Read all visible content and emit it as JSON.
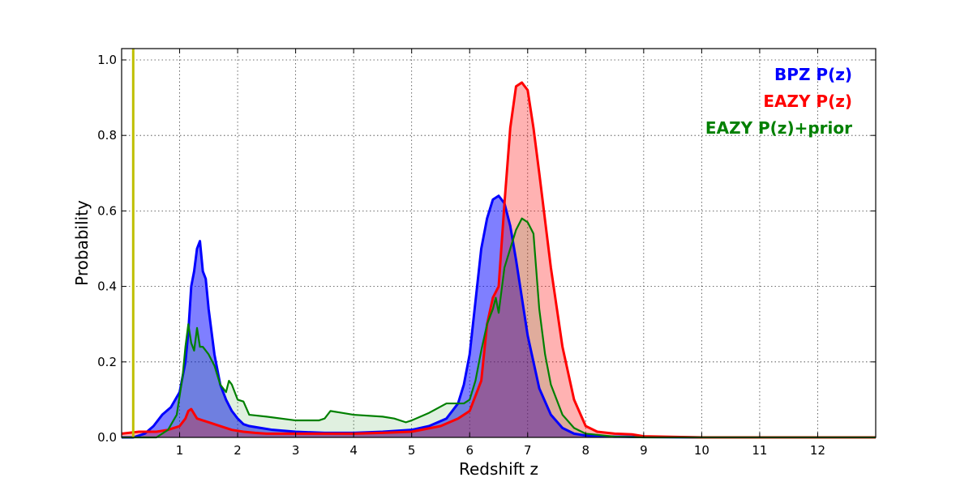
{
  "chart_data": {
    "type": "area",
    "xlabel": "Redshift z",
    "ylabel": "Probability",
    "xlim": [
      0,
      13
    ],
    "ylim": [
      0,
      1.03
    ],
    "x_ticks": [
      1,
      2,
      3,
      4,
      5,
      6,
      7,
      8,
      9,
      10,
      11,
      12
    ],
    "y_ticks": [
      0.0,
      0.2,
      0.4,
      0.6,
      0.8,
      1.0
    ],
    "y_tick_labels": [
      "0.0",
      "0.2",
      "0.4",
      "0.6",
      "0.8",
      "1.0"
    ],
    "grid": true,
    "legend_placement": "top-right",
    "vertical_line": {
      "x": 0.2,
      "color": "#bfbf00"
    },
    "series": [
      {
        "name": "BPZ P(z)",
        "color": "#0000ff",
        "fill": "#0000ff",
        "fill_opacity": 0.5,
        "x": [
          0,
          0.2,
          0.4,
          0.55,
          0.7,
          0.85,
          1.0,
          1.1,
          1.15,
          1.2,
          1.25,
          1.3,
          1.35,
          1.4,
          1.45,
          1.5,
          1.6,
          1.7,
          1.8,
          1.9,
          2.0,
          2.1,
          2.2,
          2.4,
          2.6,
          3.0,
          3.5,
          4.0,
          4.5,
          5.0,
          5.3,
          5.6,
          5.8,
          5.9,
          6.0,
          6.1,
          6.2,
          6.3,
          6.4,
          6.5,
          6.6,
          6.7,
          6.8,
          6.9,
          7.0,
          7.2,
          7.4,
          7.6,
          7.8,
          8.0,
          8.5,
          9,
          10,
          13
        ],
        "y": [
          0.0,
          0.0,
          0.01,
          0.03,
          0.06,
          0.08,
          0.12,
          0.2,
          0.28,
          0.4,
          0.44,
          0.5,
          0.52,
          0.44,
          0.42,
          0.34,
          0.22,
          0.14,
          0.1,
          0.07,
          0.05,
          0.035,
          0.03,
          0.025,
          0.02,
          0.015,
          0.012,
          0.012,
          0.015,
          0.02,
          0.03,
          0.05,
          0.09,
          0.14,
          0.22,
          0.36,
          0.5,
          0.58,
          0.63,
          0.64,
          0.62,
          0.56,
          0.47,
          0.37,
          0.27,
          0.13,
          0.06,
          0.025,
          0.01,
          0.005,
          0.002,
          0.001,
          0.0,
          0.0
        ]
      },
      {
        "name": "EAZY P(z)",
        "color": "#ff0000",
        "fill": "#ff0000",
        "fill_opacity": 0.3,
        "x": [
          0,
          0.3,
          0.6,
          0.8,
          1.0,
          1.1,
          1.15,
          1.2,
          1.3,
          1.4,
          1.5,
          1.7,
          1.9,
          2.1,
          2.3,
          2.5,
          3.0,
          3.5,
          4.0,
          4.5,
          5.0,
          5.5,
          5.8,
          6.0,
          6.2,
          6.3,
          6.4,
          6.5,
          6.6,
          6.7,
          6.8,
          6.9,
          6.95,
          7.0,
          7.1,
          7.2,
          7.4,
          7.6,
          7.8,
          8.0,
          8.2,
          8.5,
          8.8,
          9.0,
          10,
          13
        ],
        "y": [
          0.01,
          0.015,
          0.015,
          0.02,
          0.03,
          0.05,
          0.07,
          0.075,
          0.05,
          0.045,
          0.04,
          0.03,
          0.02,
          0.015,
          0.012,
          0.01,
          0.01,
          0.01,
          0.01,
          0.012,
          0.015,
          0.03,
          0.05,
          0.07,
          0.15,
          0.3,
          0.37,
          0.4,
          0.62,
          0.82,
          0.93,
          0.94,
          0.93,
          0.92,
          0.82,
          0.7,
          0.45,
          0.24,
          0.1,
          0.03,
          0.015,
          0.01,
          0.008,
          0.003,
          0.0,
          0.0
        ]
      },
      {
        "name": "EAZY P(z)+prior",
        "color": "#008000",
        "fill": "#008000",
        "fill_opacity": 0.12,
        "x": [
          0,
          0.4,
          0.6,
          0.8,
          0.95,
          1.05,
          1.1,
          1.15,
          1.2,
          1.25,
          1.3,
          1.35,
          1.4,
          1.5,
          1.6,
          1.7,
          1.8,
          1.85,
          1.9,
          2.0,
          2.1,
          2.2,
          2.5,
          3.0,
          3.3,
          3.4,
          3.5,
          3.6,
          3.8,
          4.0,
          4.5,
          4.7,
          4.9,
          5.0,
          5.3,
          5.6,
          5.9,
          6.0,
          6.1,
          6.2,
          6.3,
          6.4,
          6.45,
          6.5,
          6.6,
          6.7,
          6.8,
          6.9,
          7.0,
          7.1,
          7.2,
          7.3,
          7.4,
          7.6,
          7.8,
          8.0,
          8.5,
          9,
          13
        ],
        "y": [
          0.0,
          0.0,
          0.0,
          0.02,
          0.06,
          0.16,
          0.24,
          0.3,
          0.25,
          0.23,
          0.29,
          0.24,
          0.24,
          0.22,
          0.19,
          0.14,
          0.12,
          0.15,
          0.14,
          0.1,
          0.095,
          0.06,
          0.055,
          0.045,
          0.045,
          0.045,
          0.05,
          0.07,
          0.065,
          0.06,
          0.055,
          0.05,
          0.04,
          0.045,
          0.065,
          0.09,
          0.09,
          0.1,
          0.15,
          0.23,
          0.3,
          0.34,
          0.37,
          0.33,
          0.45,
          0.5,
          0.55,
          0.58,
          0.57,
          0.54,
          0.34,
          0.22,
          0.14,
          0.06,
          0.025,
          0.01,
          0.002,
          0.0,
          0.0
        ]
      }
    ]
  }
}
